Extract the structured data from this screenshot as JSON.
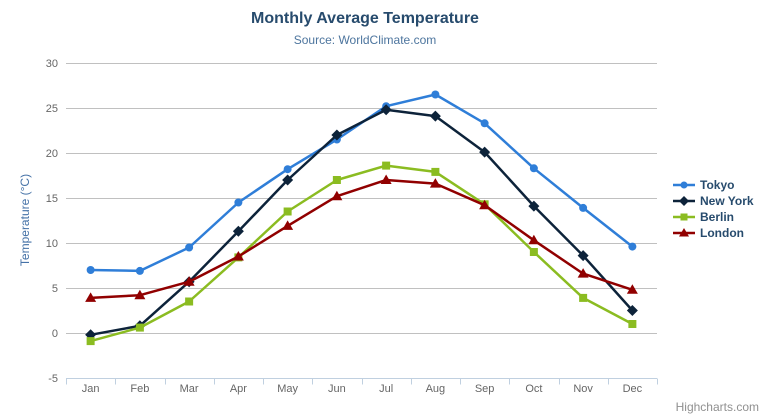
{
  "chart_data": {
    "type": "line",
    "title": "Monthly Average Temperature",
    "subtitle": "Source: WorldClimate.com",
    "categories": [
      "Jan",
      "Feb",
      "Mar",
      "Apr",
      "May",
      "Jun",
      "Jul",
      "Aug",
      "Sep",
      "Oct",
      "Nov",
      "Dec"
    ],
    "xlabel": "",
    "ylabel": "Temperature (°C)",
    "ylim": [
      -5,
      30
    ],
    "y_tick_interval": 5,
    "y_tick_labels": [
      -5,
      0,
      5,
      10,
      15,
      20,
      25,
      30
    ],
    "grid": true,
    "legend_position": "right",
    "series": [
      {
        "name": "Tokyo",
        "color": "#2f7ed8",
        "marker": "circle",
        "values": [
          7.0,
          6.9,
          9.5,
          14.5,
          18.2,
          21.5,
          25.2,
          26.5,
          23.3,
          18.3,
          13.9,
          9.6
        ]
      },
      {
        "name": "New York",
        "color": "#0d233a",
        "marker": "diamond",
        "values": [
          -0.2,
          0.8,
          5.7,
          11.3,
          17.0,
          22.0,
          24.8,
          24.1,
          20.1,
          14.1,
          8.6,
          2.5
        ]
      },
      {
        "name": "Berlin",
        "color": "#8bbc21",
        "marker": "square",
        "values": [
          -0.9,
          0.6,
          3.5,
          8.4,
          13.5,
          17.0,
          18.6,
          17.9,
          14.3,
          9.0,
          3.9,
          1.0
        ]
      },
      {
        "name": "London",
        "color": "#910000",
        "marker": "triangle",
        "values": [
          3.9,
          4.2,
          5.7,
          8.5,
          11.9,
          15.2,
          17.0,
          16.6,
          14.2,
          10.3,
          6.6,
          4.8
        ]
      }
    ]
  },
  "colors": {
    "title": "#274b6d",
    "subtitle": "#4d759e",
    "y_axis_title": "#4572a7",
    "axis_labels": "#666666",
    "grid_line": "#c0c0c0",
    "axis_line": "#c0d0e0",
    "legend_text": "#274b6d",
    "credits_text": "#909090",
    "export_icon": "#666666"
  },
  "credits": {
    "label": "Highcharts.com"
  },
  "export_menu": {
    "icon": "hamburger-menu-icon"
  }
}
